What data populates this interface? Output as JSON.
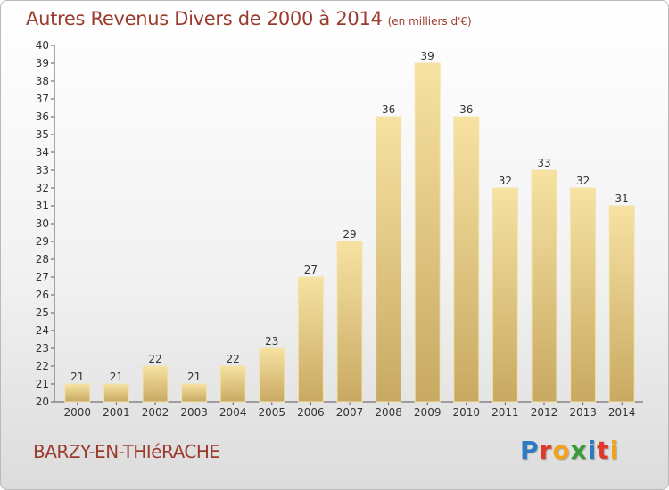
{
  "title": "Autres Revenus Divers de 2000 à 2014",
  "subtitle": "(en milliers d'€)",
  "place": "BARZY-EN-THIéRACHE",
  "logo": {
    "letters": [
      "P",
      "r",
      "o",
      "x",
      "i",
      "t",
      "i"
    ],
    "colors": [
      "#2b7bc4",
      "#e0382c",
      "#f2a31b",
      "#3a9a3a",
      "#2b7bc4",
      "#e0382c",
      "#f2a31b"
    ]
  },
  "colors": {
    "bar_light": "#f7e2a2",
    "bar_dark": "#c8a962",
    "title": "#9b3b2e"
  },
  "chart_data": {
    "type": "bar",
    "categories": [
      "2000",
      "2001",
      "2002",
      "2003",
      "2004",
      "2005",
      "2006",
      "2007",
      "2008",
      "2009",
      "2010",
      "2011",
      "2012",
      "2013",
      "2014"
    ],
    "values": [
      21,
      21,
      22,
      21,
      22,
      23,
      27,
      29,
      36,
      39,
      36,
      32,
      33,
      32,
      31
    ],
    "title": "Autres Revenus Divers de 2000 à 2014",
    "xlabel": "",
    "ylabel": "",
    "ylim": [
      20,
      40
    ],
    "yticks": [
      20,
      21,
      22,
      23,
      24,
      25,
      26,
      27,
      28,
      29,
      30,
      31,
      32,
      33,
      34,
      35,
      36,
      37,
      38,
      39,
      40
    ],
    "grid": false,
    "legend": "none",
    "data_labels": true
  }
}
